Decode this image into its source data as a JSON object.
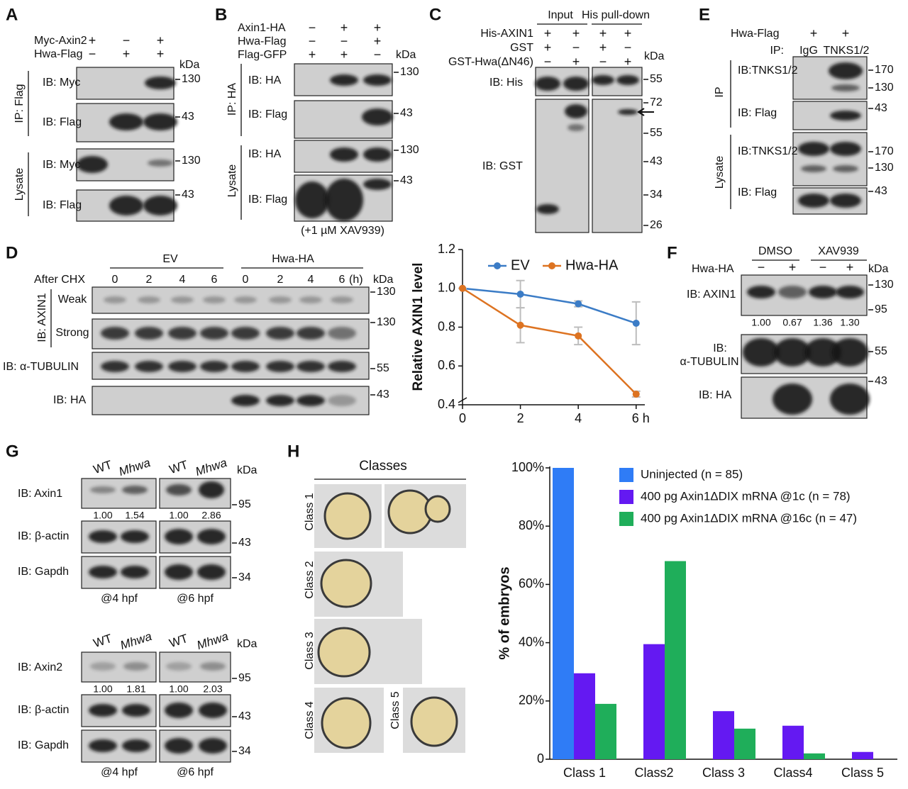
{
  "panels": {
    "a": {
      "label": "A",
      "conditions": [
        {
          "name": "Myc-Axin2",
          "signs": [
            "+",
            "−",
            "+"
          ]
        },
        {
          "name": "Hwa-Flag",
          "signs": [
            "−",
            "+",
            "+"
          ]
        }
      ],
      "unit": "kDa",
      "ip": "IP: Flag",
      "lysate": "Lysate",
      "blots": [
        {
          "ib": "IB: Myc",
          "marker": "130"
        },
        {
          "ib": "IB: Flag",
          "marker": "43"
        },
        {
          "ib": "IB: Myc",
          "marker": "130"
        },
        {
          "ib": "IB: Flag",
          "marker": "43"
        }
      ]
    },
    "b": {
      "label": "B",
      "conditions": [
        {
          "name": "Axin1-HA",
          "signs": [
            "−",
            "+",
            "+"
          ]
        },
        {
          "name": "Hwa-Flag",
          "signs": [
            "−",
            "−",
            "+"
          ]
        },
        {
          "name": "Flag-GFP",
          "signs": [
            "+",
            "+",
            "−"
          ]
        }
      ],
      "unit": "kDa",
      "ip": "IP: HA",
      "lysate": "Lysate",
      "blots": [
        {
          "ib": "IB: HA",
          "marker": "130"
        },
        {
          "ib": "IB: Flag",
          "marker": "43"
        },
        {
          "ib": "IB: HA",
          "marker": "130"
        },
        {
          "ib": "IB: Flag",
          "marker": "43"
        }
      ],
      "note": "(+1 µM XAV939)"
    },
    "c": {
      "label": "C",
      "headers": [
        "Input",
        "His pull-down"
      ],
      "conditions": [
        {
          "name": "His-AXIN1",
          "signs": [
            "+",
            "+",
            "+",
            "+"
          ]
        },
        {
          "name": "GST",
          "signs": [
            "+",
            "−",
            "+",
            "−"
          ]
        },
        {
          "name": "GST-Hwa(ΔN46)",
          "signs": [
            "−",
            "+",
            "−",
            "+"
          ]
        }
      ],
      "unit": "kDa",
      "blots": [
        "IB: His",
        "IB: GST"
      ],
      "markers": [
        "55",
        "72",
        "55",
        "43",
        "34",
        "26"
      ]
    },
    "d": {
      "label": "D",
      "groups": [
        "EV",
        "Hwa-HA"
      ],
      "time_label": "After CHX",
      "times": [
        "0",
        "2",
        "4",
        "6",
        "0",
        "2",
        "4",
        "6"
      ],
      "time_unit": "(h)",
      "unit": "kDa",
      "ib_axin": "IB: AXIN1",
      "exposures": [
        "Weak",
        "Strong"
      ],
      "blots": [
        "IB: α-TUBULIN",
        "IB: HA"
      ],
      "markers": [
        "130",
        "130",
        "55",
        "43"
      ]
    },
    "e": {
      "label": "E",
      "condition": {
        "name": "Hwa-Flag",
        "signs": [
          "+",
          "+"
        ]
      },
      "ip_label": "IP:",
      "ip_lanes": [
        "IgG",
        "TNKS1/2"
      ],
      "ip": "IP",
      "lysate": "Lysate",
      "blots": [
        "IB:TNKS1/2",
        "IB: Flag",
        "IB:TNKS1/2",
        "IB: Flag"
      ],
      "markers": [
        "170",
        "130",
        "43",
        "170",
        "130",
        "43"
      ]
    },
    "f": {
      "label": "F",
      "groups": [
        "DMSO",
        "XAV939"
      ],
      "condition": {
        "name": "Hwa-HA",
        "signs": [
          "−",
          "+",
          "−",
          "+"
        ]
      },
      "unit": "kDa",
      "blots": [
        [
          "IB: AXIN1"
        ],
        [
          "IB:",
          "α-TUBULIN"
        ],
        [
          "IB: HA"
        ]
      ],
      "quant": [
        "1.00",
        "0.67",
        "1.36",
        "1.30"
      ],
      "markers": [
        "130",
        "95",
        "55",
        "43"
      ]
    },
    "g": {
      "label": "G",
      "blocks": [
        {
          "lanes": [
            "WT",
            "Mhwa",
            "WT",
            "Mhwa"
          ],
          "unit": "kDa",
          "blots": [
            "IB: Axin1",
            "IB: β-actin",
            "IB: Gapdh"
          ],
          "quant": [
            "1.00",
            "1.54",
            "1.00",
            "2.86"
          ],
          "markers": [
            "95",
            "43",
            "34"
          ],
          "stages": [
            "@4 hpf",
            "@6 hpf"
          ]
        },
        {
          "lanes": [
            "WT",
            "Mhwa",
            "WT",
            "Mhwa"
          ],
          "unit": "kDa",
          "blots": [
            "IB: Axin2",
            "IB: β-actin",
            "IB: Gapdh"
          ],
          "quant": [
            "1.00",
            "1.81",
            "1.00",
            "2.03"
          ],
          "markers": [
            "95",
            "43",
            "34"
          ],
          "stages": [
            "@4 hpf",
            "@6 hpf"
          ]
        }
      ]
    },
    "h": {
      "label": "H",
      "title": "Classes",
      "classes": [
        "Class 1",
        "Class 2",
        "Class 3",
        "Class 4",
        "Class 5"
      ]
    }
  },
  "chart_data": [
    {
      "type": "line",
      "y_label": "Relative AXIN1 level",
      "x": [
        0,
        2,
        4,
        6
      ],
      "xlim": [
        0,
        6.3
      ],
      "xticks": [
        0,
        2,
        4,
        {
          "value": 6,
          "label": "6 h"
        }
      ],
      "ylim": [
        0.4,
        1.2
      ],
      "yticks": [
        0.4,
        0.6,
        0.8,
        {
          "value": 1,
          "label": "1.0"
        },
        1.2
      ],
      "error_color": "#bdbdbd",
      "series": [
        {
          "name": "EV",
          "color": "#3b7cc6",
          "values": [
            1,
            0.97,
            0.92,
            0.82
          ],
          "errors": [
            0,
            0.07,
            0.015,
            0.11
          ]
        },
        {
          "name": "Hwa-HA",
          "color": "#dd7321",
          "values": [
            1,
            0.81,
            0.755,
            0.455
          ],
          "errors": [
            0,
            0.09,
            0.045,
            0.015
          ]
        }
      ]
    },
    {
      "type": "bar",
      "y_label": "% of embryos",
      "categories": [
        "Class 1",
        "Class2",
        "Class 3",
        "Class4",
        "Class 5"
      ],
      "ylim": [
        0,
        100
      ],
      "yticks": [
        0,
        {
          "value": 20,
          "label": "20%"
        },
        {
          "value": 40,
          "label": "40%"
        },
        {
          "value": 60,
          "label": "60%"
        },
        {
          "value": 80,
          "label": "80%"
        },
        {
          "value": 100,
          "label": "100%"
        }
      ],
      "series": [
        {
          "name": "Uninjected (n = 85)",
          "color": "#2f7cf6",
          "values": [
            100,
            0,
            0,
            0,
            0
          ]
        },
        {
          "name": "400 pg Axin1ΔDIX mRNA @1c (n = 78)",
          "color": "#6419f2",
          "values": [
            29.5,
            39.5,
            16.5,
            11.5,
            2.5
          ]
        },
        {
          "name": "400 pg Axin1ΔDIX mRNA @16c (n = 47)",
          "color": "#1fae5a",
          "values": [
            19,
            68,
            10.5,
            2,
            0
          ]
        }
      ]
    }
  ]
}
